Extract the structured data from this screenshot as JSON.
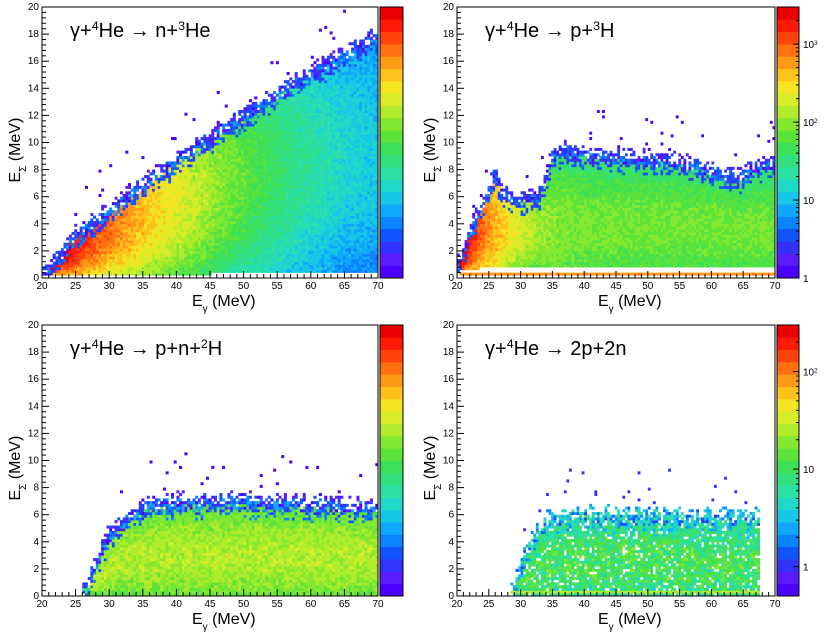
{
  "figure": {
    "panel_count": 4
  },
  "chart_data": [
    {
      "type": "heatmap",
      "title_parts": [
        {
          "t": "γ+"
        },
        {
          "t": "4",
          "sup": true
        },
        {
          "t": "He → n+"
        },
        {
          "t": "3",
          "sup": true
        },
        {
          "t": "He"
        }
      ],
      "xlabel": "E",
      "xlabel_sub": "γ",
      "xlabel_unit": " (MeV)",
      "ylabel": "E",
      "ylabel_sub": "Σ",
      "ylabel_unit": " (MeV)",
      "xlim": [
        20,
        70
      ],
      "ylim": [
        0,
        20
      ],
      "xticks": [
        20,
        25,
        30,
        35,
        40,
        45,
        50,
        55,
        60,
        65,
        70
      ],
      "yticks": [
        0,
        2,
        4,
        6,
        8,
        10,
        12,
        14,
        16,
        18,
        20
      ],
      "z_scale": "log",
      "z_ticks": [],
      "z_range": [
        1,
        2000
      ],
      "model": {
        "kind": "wedge",
        "upper": [
          [
            20.3,
            0.3
          ],
          [
            25,
            3.2
          ],
          [
            30,
            5.0
          ],
          [
            40,
            8.8
          ],
          [
            50,
            12.0
          ],
          [
            60,
            15.2
          ],
          [
            67,
            17.0
          ],
          [
            70,
            18.0
          ]
        ],
        "lower": [
          [
            20.3,
            0.2
          ],
          [
            70,
            0.4
          ]
        ],
        "ridge": [
          [
            20.5,
            0.6
          ],
          [
            25,
            2.2
          ],
          [
            30,
            3.5
          ],
          [
            40,
            5.6
          ],
          [
            50,
            7.5
          ],
          [
            60,
            8.8
          ],
          [
            70,
            9.5
          ]
        ],
        "peak_z": 2000,
        "falloff_x": 8,
        "base_z": 6
      }
    },
    {
      "type": "heatmap",
      "title_parts": [
        {
          "t": "γ+"
        },
        {
          "t": "4",
          "sup": true
        },
        {
          "t": "He → p+"
        },
        {
          "t": "3",
          "sup": true
        },
        {
          "t": "H"
        }
      ],
      "xlabel": "E",
      "xlabel_sub": "γ",
      "xlabel_unit": " (MeV)",
      "ylabel": "E",
      "ylabel_sub": "Σ",
      "ylabel_unit": " (MeV)",
      "xlim": [
        20,
        70
      ],
      "ylim": [
        0,
        20
      ],
      "xticks": [
        20,
        25,
        30,
        35,
        40,
        45,
        50,
        55,
        60,
        65,
        70
      ],
      "yticks": [
        0,
        2,
        4,
        6,
        8,
        10,
        12,
        14,
        16,
        18,
        20
      ],
      "z_scale": "log",
      "z_ticks": [
        {
          "v": 1,
          "mant": "1"
        },
        {
          "v": 10,
          "mant": "10"
        },
        {
          "v": 100,
          "mant": "10",
          "exp": "2"
        },
        {
          "v": 1000,
          "mant": "10",
          "exp": "3"
        }
      ],
      "z_range": [
        1,
        3000
      ],
      "model": {
        "kind": "band",
        "upper": [
          [
            20.3,
            1.2
          ],
          [
            23,
            4.5
          ],
          [
            25,
            6.5
          ],
          [
            26,
            7.8
          ],
          [
            27,
            6.5
          ],
          [
            28,
            6.2
          ],
          [
            30,
            5.8
          ],
          [
            33,
            6.2
          ],
          [
            35,
            9.0
          ],
          [
            37,
            9.6
          ],
          [
            40,
            9.2
          ],
          [
            45,
            9.0
          ],
          [
            50,
            8.8
          ],
          [
            55,
            8.6
          ],
          [
            60,
            8.0
          ],
          [
            62,
            7.6
          ],
          [
            64,
            7.4
          ],
          [
            66,
            8.0
          ],
          [
            68,
            8.4
          ],
          [
            69.5,
            8.6
          ]
        ],
        "lower": [
          [
            20.3,
            0.5
          ],
          [
            25,
            0.8
          ],
          [
            30,
            0.8
          ],
          [
            70,
            0.8
          ]
        ],
        "ridge": [
          [
            20.5,
            1.2
          ],
          [
            23,
            3.0
          ],
          [
            25,
            4.0
          ],
          [
            28,
            3.6
          ],
          [
            32,
            3.4
          ],
          [
            40,
            3.8
          ],
          [
            50,
            3.8
          ],
          [
            60,
            3.6
          ],
          [
            70,
            3.4
          ]
        ],
        "peak_z": 3000,
        "falloff_x": 3,
        "base_z": 80,
        "line_y": 0.3,
        "line_z": 600,
        "edge_line": true
      }
    },
    {
      "type": "heatmap",
      "title_parts": [
        {
          "t": "γ+"
        },
        {
          "t": "4",
          "sup": true
        },
        {
          "t": "He → p+n+"
        },
        {
          "t": "2",
          "sup": true
        },
        {
          "t": "H"
        }
      ],
      "xlabel": "E",
      "xlabel_sub": "γ",
      "xlabel_unit": " (MeV)",
      "ylabel": "E",
      "ylabel_sub": "Σ",
      "ylabel_unit": " (MeV)",
      "xlim": [
        20,
        70
      ],
      "ylim": [
        0,
        20
      ],
      "xticks": [
        20,
        25,
        30,
        35,
        40,
        45,
        50,
        55,
        60,
        65,
        70
      ],
      "yticks": [
        0,
        2,
        4,
        6,
        8,
        10,
        12,
        14,
        16,
        18,
        20
      ],
      "z_scale": "log",
      "z_ticks": [],
      "z_range": [
        1,
        1000
      ],
      "model": {
        "kind": "band",
        "upper": [
          [
            26,
            0.0
          ],
          [
            28,
            2.5
          ],
          [
            30,
            4.6
          ],
          [
            33,
            6.0
          ],
          [
            36,
            6.8
          ],
          [
            40,
            7.0
          ],
          [
            50,
            7.0
          ],
          [
            60,
            6.8
          ],
          [
            70,
            6.6
          ]
        ],
        "lower": [
          [
            26,
            0.0
          ],
          [
            70,
            0.0
          ]
        ],
        "ridge": [
          [
            27,
            0.8
          ],
          [
            32,
            2.8
          ],
          [
            40,
            3.0
          ],
          [
            50,
            3.0
          ],
          [
            70,
            2.8
          ]
        ],
        "peak_z": 120,
        "falloff_x": 0,
        "base_z": 70,
        "line_y": 0.5,
        "line_z": 20,
        "base_line": true
      }
    },
    {
      "type": "heatmap",
      "title_parts": [
        {
          "t": "γ+"
        },
        {
          "t": "4",
          "sup": true
        },
        {
          "t": "He → 2p+2n"
        }
      ],
      "xlabel": "E",
      "xlabel_sub": "γ",
      "xlabel_unit": " (MeV)",
      "ylabel": "E",
      "ylabel_sub": "Σ",
      "ylabel_unit": " (MeV)",
      "xlim": [
        20,
        70
      ],
      "ylim": [
        0,
        20
      ],
      "xticks": [
        20,
        25,
        30,
        35,
        40,
        45,
        50,
        55,
        60,
        65,
        70
      ],
      "yticks": [
        0,
        2,
        4,
        6,
        8,
        10,
        12,
        14,
        16,
        18,
        20
      ],
      "z_scale": "log",
      "z_ticks": [
        {
          "v": 1,
          "mant": "1"
        },
        {
          "v": 10,
          "mant": "10"
        },
        {
          "v": 100,
          "mant": "10",
          "exp": "2"
        }
      ],
      "z_range": [
        0.5,
        300
      ],
      "model": {
        "kind": "band",
        "upper": [
          [
            28.5,
            0.0
          ],
          [
            31,
            3.5
          ],
          [
            34,
            5.5
          ],
          [
            38,
            6.0
          ],
          [
            50,
            6.0
          ],
          [
            60,
            5.8
          ],
          [
            67.5,
            5.8
          ]
        ],
        "lower": [
          [
            28.5,
            0.0
          ],
          [
            67.5,
            0.0
          ]
        ],
        "ridge": [
          [
            29,
            0.6
          ],
          [
            34,
            2.2
          ],
          [
            40,
            2.5
          ],
          [
            50,
            2.5
          ],
          [
            67,
            2.3
          ]
        ],
        "peak_z": 40,
        "falloff_x": 0,
        "base_z": 10,
        "line_y": 0.3,
        "line_z": 25,
        "base_line": true,
        "x_end": 67.5,
        "noisy": true
      }
    }
  ]
}
